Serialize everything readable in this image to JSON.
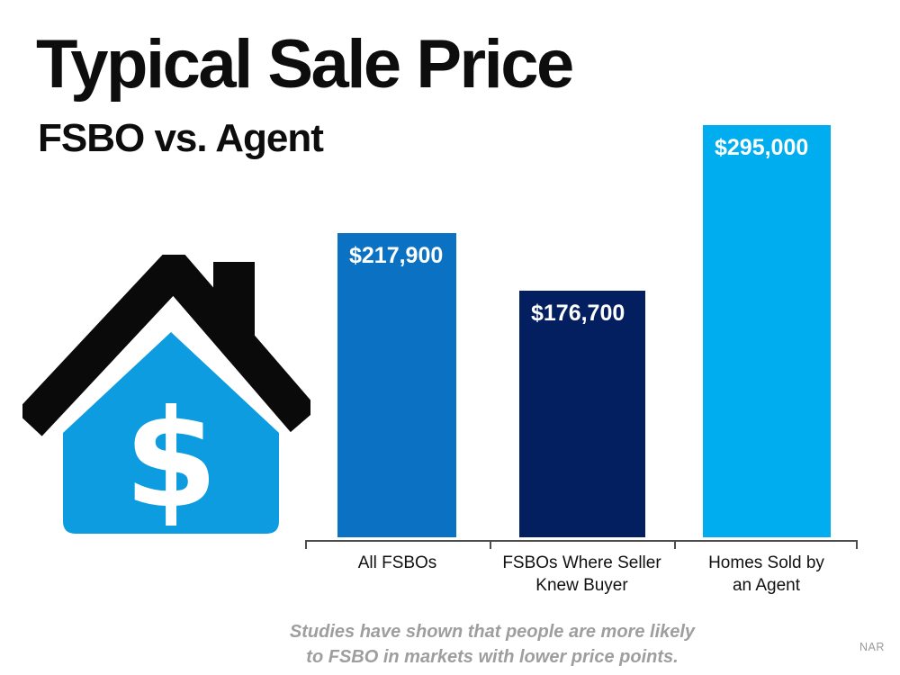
{
  "page": {
    "title": "Typical Sale Price",
    "subtitle": "FSBO vs. Agent",
    "footnote_line1": "Studies have shown that people are more likely",
    "footnote_line2": "to FSBO in markets with lower price points.",
    "source": "NAR"
  },
  "icons": {
    "house": {
      "name": "house-dollar-icon",
      "glyph": "$",
      "body_color": "#0D9CE0",
      "roof_color": "#0A0A0A",
      "glyph_color": "#FFFFFF"
    }
  },
  "chart_data": {
    "type": "bar",
    "title": "Typical Sale Price",
    "subtitle": "FSBO vs. Agent",
    "categories": [
      "All FSBOs",
      "FSBOs Where Seller Knew Buyer",
      "Homes Sold by an Agent"
    ],
    "categories_lines": [
      [
        "All FSBOs"
      ],
      [
        "FSBOs Where Seller",
        "Knew Buyer"
      ],
      [
        "Homes Sold by",
        "an Agent"
      ]
    ],
    "values": [
      217900,
      176700,
      295000
    ],
    "value_labels": [
      "$217,900",
      "$176,700",
      "$295,000"
    ],
    "colors": [
      "#0B71C2",
      "#041F60",
      "#00AEEF"
    ],
    "ylim": [
      0,
      295000
    ],
    "xlabel": "",
    "ylabel": "",
    "grid": false,
    "legend": false,
    "value_label_position": "inside-top-left",
    "value_label_color": "#FFFFFF",
    "axis_color": "#4D4D4D",
    "footnote": "Studies have shown that people are more likely to FSBO in markets with lower price points.",
    "source": "NAR"
  }
}
